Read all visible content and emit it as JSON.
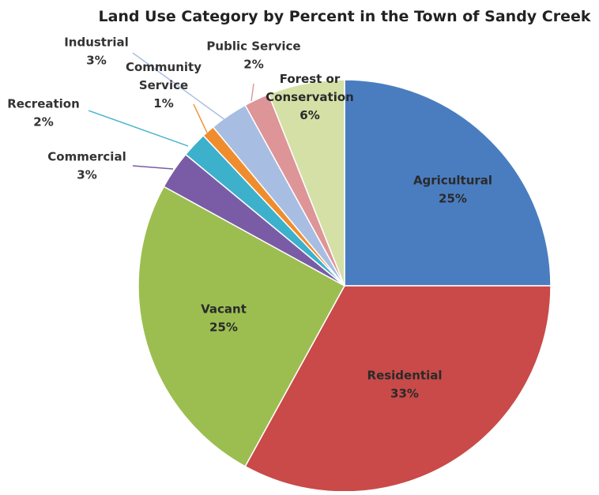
{
  "chart_data": {
    "type": "pie",
    "title": "Land Use Category by Percent in the Town of Sandy Creek",
    "slices": [
      {
        "label": "Agricultural",
        "lines": [
          "Agricultural"
        ],
        "value": 25,
        "value_label": "25%",
        "color": "#4a7dc0"
      },
      {
        "label": "Residential",
        "lines": [
          "Residential"
        ],
        "value": 33,
        "value_label": "33%",
        "color": "#c94a48"
      },
      {
        "label": "Vacant",
        "lines": [
          "Vacant"
        ],
        "value": 25,
        "value_label": "25%",
        "color": "#9cbe51"
      },
      {
        "label": "Commercial",
        "lines": [
          "Commercial"
        ],
        "value": 3,
        "value_label": "3%",
        "color": "#7a5ca6"
      },
      {
        "label": "Recreation",
        "lines": [
          "Recreation"
        ],
        "value": 2,
        "value_label": "2%",
        "color": "#3db0cc"
      },
      {
        "label": "Community Service",
        "lines": [
          "Community",
          "Service"
        ],
        "value": 1,
        "value_label": "1%",
        "color": "#ef8d2e"
      },
      {
        "label": "Industrial",
        "lines": [
          "Industrial"
        ],
        "value": 3,
        "value_label": "3%",
        "color": "#a8bde2"
      },
      {
        "label": "Public Service",
        "lines": [
          "Public Service"
        ],
        "value": 2,
        "value_label": "2%",
        "color": "#dd9597"
      },
      {
        "label": "Forest or Conservation",
        "lines": [
          "Forest or",
          "Conservation"
        ],
        "value": 6,
        "value_label": "6%",
        "color": "#d4e0a6"
      }
    ],
    "start": "12 o'clock",
    "direction": "clockwise",
    "legend": "none"
  }
}
